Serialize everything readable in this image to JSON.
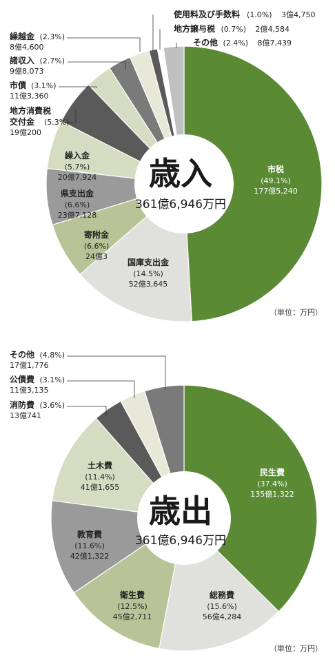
{
  "colors": {
    "green": "#5a8a34",
    "light_gray": "#e0e0dd",
    "olive_light": "#b8c497",
    "mid_gray": "#9a9a9a",
    "pale_olive": "#d5dcc2",
    "dark_gray": "#5a5a5a",
    "gray2": "#7a7a7a",
    "pale": "#e8e8d8",
    "light_gray2": "#c0c0c0",
    "white": "#ffffff"
  },
  "chart_data": [
    {
      "type": "pie",
      "title": "歳入",
      "total": "361億6,946万円",
      "unit": "（単位：万円）",
      "slices": [
        {
          "name": "市税",
          "pct": 49.1,
          "pct_label": "(49.1%)",
          "amount": "177億5,240",
          "color": "#5a8a34",
          "label_side": "inside"
        },
        {
          "name": "国庫支出金",
          "pct": 14.5,
          "pct_label": "(14.5%)",
          "amount": "52億3,645",
          "color": "#e0e0dd",
          "label_side": "inside"
        },
        {
          "name": "寄附金",
          "pct": 6.6,
          "pct_label": "(6.6%)",
          "amount": "24億3",
          "color": "#b8c497",
          "label_side": "inside"
        },
        {
          "name": "県支出金",
          "pct": 6.6,
          "pct_label": "(6.6%)",
          "amount": "23億7,128",
          "color": "#9a9a9a",
          "label_side": "inside"
        },
        {
          "name": "繰入金",
          "pct": 5.7,
          "pct_label": "(5.7%)",
          "amount": "20億7,924",
          "color": "#d5dcc2",
          "label_side": "inside"
        },
        {
          "name": "地方消費税 交付金",
          "pct": 5.3,
          "pct_label": "(5.3%)",
          "amount": "19億200",
          "color": "#5a5a5a",
          "label_side": "outside"
        },
        {
          "name": "市債",
          "pct": 3.1,
          "pct_label": "(3.1%)",
          "amount": "11億3,360",
          "color": "#d5dcc2",
          "label_side": "outside"
        },
        {
          "name": "諸収入",
          "pct": 2.7,
          "pct_label": "(2.7%)",
          "amount": "9億8,073",
          "color": "#7a7a7a",
          "label_side": "outside"
        },
        {
          "name": "繰越金",
          "pct": 2.3,
          "pct_label": "(2.3%)",
          "amount": "8億4,600",
          "color": "#e8e8d8",
          "label_side": "outside"
        },
        {
          "name": "使用料及び手数料",
          "pct": 1.0,
          "pct_label": "(1.0%)",
          "amount": "3億4,750",
          "color": "#5a5a5a",
          "label_side": "outside"
        },
        {
          "name": "地方譲与税",
          "pct": 0.7,
          "pct_label": "(0.7%)",
          "amount": "2億4,584",
          "color": "#ffffff",
          "label_side": "outside"
        },
        {
          "name": "その他",
          "pct": 2.4,
          "pct_label": "(2.4%)",
          "amount": "8億7,439",
          "color": "#c0c0c0",
          "label_side": "outside"
        }
      ]
    },
    {
      "type": "pie",
      "title": "歳出",
      "total": "361億6,946万円",
      "unit": "（単位：万円）",
      "slices": [
        {
          "name": "民生費",
          "pct": 37.4,
          "pct_label": "(37.4%)",
          "amount": "135億1,322",
          "color": "#5a8a34",
          "label_side": "inside"
        },
        {
          "name": "総務費",
          "pct": 15.6,
          "pct_label": "(15.6%)",
          "amount": "56億4,284",
          "color": "#e0e0dd",
          "label_side": "inside"
        },
        {
          "name": "衛生費",
          "pct": 12.5,
          "pct_label": "(12.5%)",
          "amount": "45億2,711",
          "color": "#b8c497",
          "label_side": "inside"
        },
        {
          "name": "教育費",
          "pct": 11.6,
          "pct_label": "(11.6%)",
          "amount": "42億1,322",
          "color": "#9a9a9a",
          "label_side": "inside"
        },
        {
          "name": "土木費",
          "pct": 11.4,
          "pct_label": "(11.4%)",
          "amount": "41億1,655",
          "color": "#d5dcc2",
          "label_side": "inside"
        },
        {
          "name": "消防費",
          "pct": 3.6,
          "pct_label": "(3.6%)",
          "amount": "13億741",
          "color": "#5a5a5a",
          "label_side": "outside"
        },
        {
          "name": "公債費",
          "pct": 3.1,
          "pct_label": "(3.1%)",
          "amount": "11億3,135",
          "color": "#e8e8d8",
          "label_side": "outside"
        },
        {
          "name": "その他",
          "pct": 4.8,
          "pct_label": "(4.8%)",
          "amount": "17億1,776",
          "color": "#7a7a7a",
          "label_side": "outside"
        }
      ]
    }
  ]
}
